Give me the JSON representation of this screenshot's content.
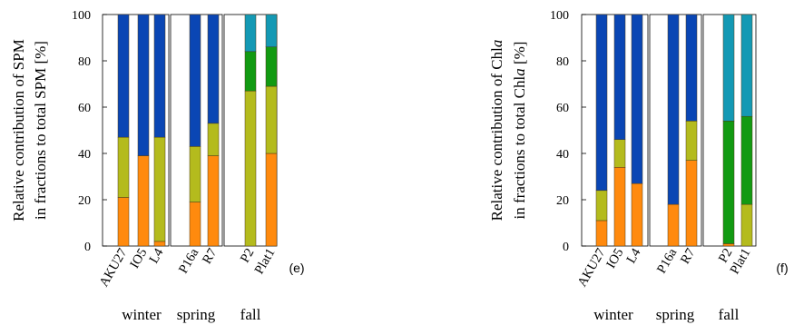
{
  "colors": {
    "blue": "#0a46b4",
    "yellowgreen": "#b4bb1d",
    "orange": "#ff8a0e",
    "green": "#129a12",
    "cyan": "#1499b4"
  },
  "chart_data": [
    {
      "type": "bar",
      "stacked": true,
      "panel": "(e)",
      "ylabel_line1": "Relative contribution of SPM",
      "ylabel_line2": "in fractions to total SPM [%]",
      "ylim": [
        0,
        100
      ],
      "yticks": [
        0,
        20,
        40,
        60,
        80,
        100
      ],
      "groups": [
        {
          "label": "winter",
          "categories": [
            "AKU27",
            "IO5",
            "L4"
          ]
        },
        {
          "label": "spring",
          "categories": [
            "P16a",
            "R7"
          ]
        },
        {
          "label": "fall",
          "categories": [
            "P2",
            "Plat1"
          ]
        }
      ],
      "categories": [
        "AKU27",
        "IO5",
        "L4",
        "P16a",
        "R7",
        "P2",
        "Plat1"
      ],
      "series": [
        {
          "color": "orange",
          "values": [
            21,
            39,
            2,
            19,
            39,
            0,
            40
          ]
        },
        {
          "color": "yellowgreen",
          "values": [
            26,
            0,
            45,
            24,
            14,
            67,
            29
          ]
        },
        {
          "color": "green",
          "values": [
            0,
            0,
            0,
            0,
            0,
            17,
            17
          ]
        },
        {
          "color": "blue",
          "values": [
            53,
            61,
            53,
            57,
            47,
            0,
            0
          ]
        },
        {
          "color": "cyan",
          "values": [
            0,
            0,
            0,
            0,
            0,
            16,
            14
          ]
        }
      ]
    },
    {
      "type": "bar",
      "stacked": true,
      "panel": "(f)",
      "ylabel_line1": "Relative contribution of Chl",
      "ylabel_italic1": "a",
      "ylabel_line2": "in fractions to total Chl",
      "ylabel_italic2": "a",
      "ylabel_suffix2": " [%]",
      "ylim": [
        0,
        100
      ],
      "yticks": [
        0,
        20,
        40,
        60,
        80,
        100
      ],
      "groups": [
        {
          "label": "winter",
          "categories": [
            "AKU27",
            "IO5",
            "L4"
          ]
        },
        {
          "label": "spring",
          "categories": [
            "P16a",
            "R7"
          ]
        },
        {
          "label": "fall",
          "categories": [
            "P2",
            "Plat1"
          ]
        }
      ],
      "categories": [
        "AKU27",
        "IO5",
        "L4",
        "P16a",
        "R7",
        "P2",
        "Plat1"
      ],
      "series": [
        {
          "color": "orange",
          "values": [
            11,
            34,
            27,
            18,
            37,
            1,
            0
          ]
        },
        {
          "color": "yellowgreen",
          "values": [
            13,
            12,
            0,
            0,
            17,
            0,
            18
          ]
        },
        {
          "color": "green",
          "values": [
            0,
            0,
            0,
            0,
            0,
            53,
            38
          ]
        },
        {
          "color": "blue",
          "values": [
            76,
            54,
            73,
            82,
            46,
            0,
            0
          ]
        },
        {
          "color": "cyan",
          "values": [
            0,
            0,
            0,
            0,
            0,
            46,
            44
          ]
        }
      ]
    }
  ]
}
